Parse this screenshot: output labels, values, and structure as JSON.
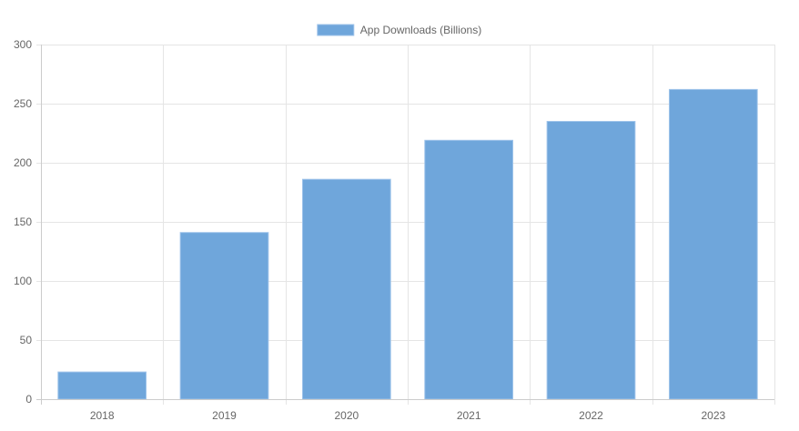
{
  "chart_data": {
    "type": "bar",
    "categories": [
      "2018",
      "2019",
      "2020",
      "2021",
      "2022",
      "2023"
    ],
    "series": [
      {
        "name": "App Downloads (Billions)",
        "values": [
          23,
          141,
          186,
          219,
          235,
          262
        ],
        "color": "#6fa6db",
        "border_color": "#9ec3ea"
      }
    ],
    "ylim": [
      0,
      300
    ],
    "yticks": [
      0,
      50,
      100,
      150,
      200,
      250,
      300
    ],
    "grid": true,
    "legend_position": "top"
  }
}
